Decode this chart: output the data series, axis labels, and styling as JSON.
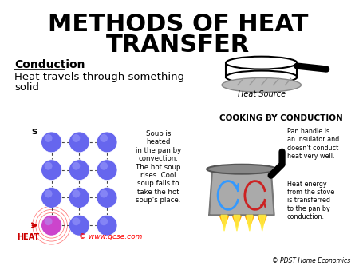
{
  "title_line1": "METHODS OF HEAT",
  "title_line2": "TRANSFER",
  "title_fontsize": 22,
  "bg_color": "#ffffff",
  "conduction_label": "Conduction",
  "heat_source_label": "Heat Source",
  "cooking_label": "COOKING BY CONDUCTION",
  "pan_handle_text": "Pan handle is\nan insulator and\ndoesn't conduct\nheat very well.",
  "heat_energy_text": "Heat energy\nfrom the stove\nis transferred\nto the pan by\nconduction.",
  "convection_text": "Soup is\nheated\nin the pan by\nconvection.\nThe hot soup\nrises. Cool\nsoup falls to\ntake the hot\nsoup's place.",
  "watermark": "© www.gcse.com",
  "credit": "© PDST Home Economics",
  "ball_color": "#6666ee",
  "ball_hot_color": "#cc44cc",
  "heat_text_color": "#cc0000",
  "arrow_color": "#cc0000"
}
